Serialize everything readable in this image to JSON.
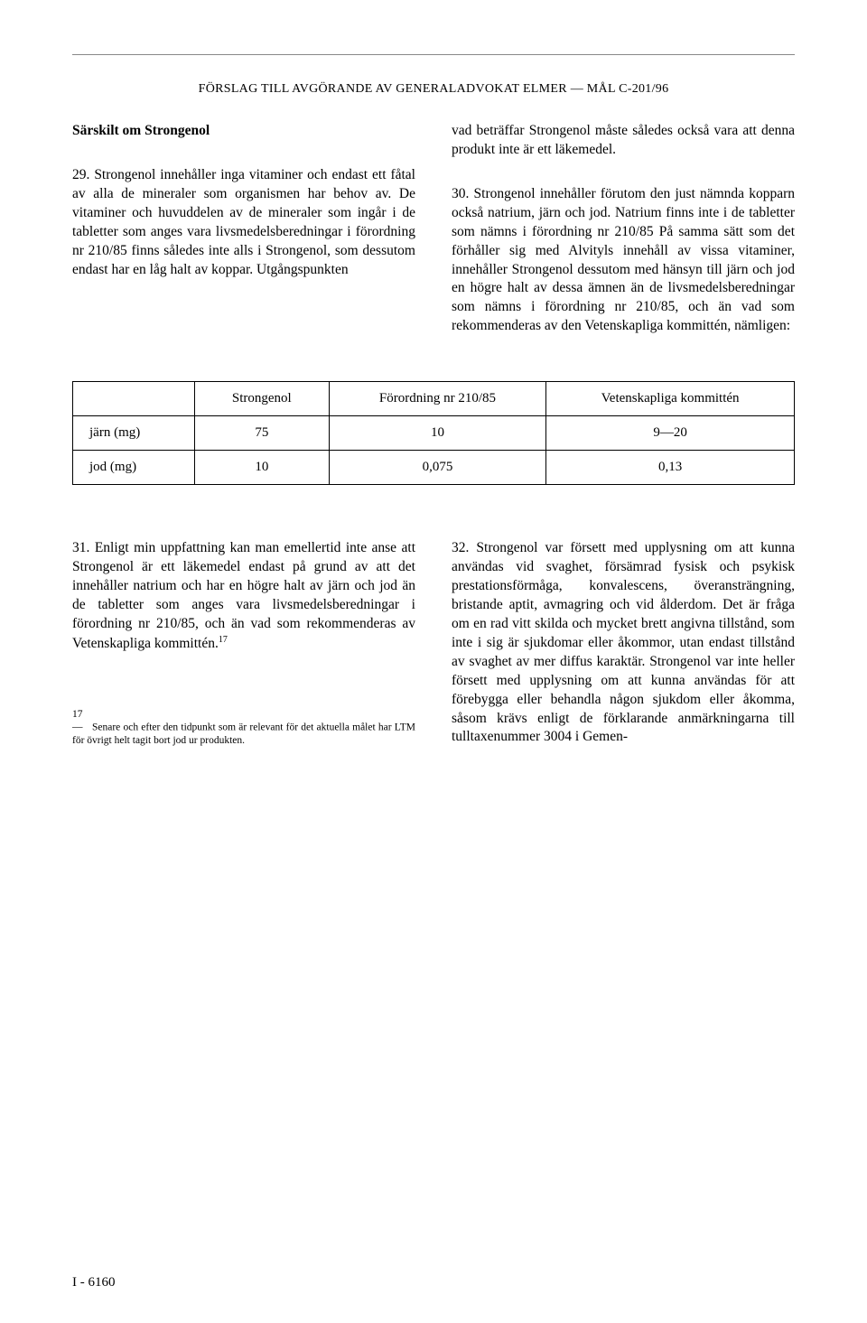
{
  "header": "FÖRSLAG TILL AVGÖRANDE AV GENERALADVOKAT ELMER — MÅL C-201/96",
  "left": {
    "subhead": "Särskilt om Strongenol",
    "para29": "29. Strongenol innehåller inga vitaminer och endast ett fåtal av alla de mineraler som organismen har behov av. De vitaminer och huvuddelen av de mineraler som ingår i de tabletter som anges vara livsmedelsberedningar i förordning nr 210/85 finns således inte alls i Strongenol, som dessutom endast har en låg halt av koppar. Utgångspunkten"
  },
  "right": {
    "paraIntro": "vad beträffar Strongenol måste således också vara att denna produkt inte är ett läkemedel.",
    "para30": "30. Strongenol innehåller förutom den just nämnda kopparn också natrium, järn och jod. Natrium finns inte i de tabletter som nämns i förordning nr 210/85 På samma sätt som det förhåller sig med Alvityls innehåll av vissa vitaminer, innehåller Strongenol dessutom med hänsyn till järn och jod en högre halt av dessa ämnen än de livsmedelsberedningar som nämns i förordning nr 210/85, och än vad som rekommenderas av den Vetenskapliga kommittén, nämligen:"
  },
  "table": {
    "columns": [
      "",
      "Strongenol",
      "Förordning nr 210/85",
      "Vetenskapliga kommittén"
    ],
    "rows": [
      [
        "järn (mg)",
        "75",
        "10",
        "9—20"
      ],
      [
        "jod (mg)",
        "10",
        "0,075",
        "0,13"
      ]
    ]
  },
  "lower_left": {
    "para31": "31. Enligt min uppfattning kan man emellertid inte anse att Strongenol är ett läkemedel endast på grund av att det innehåller natrium och har en högre halt av järn och jod än de tabletter som anges vara livsmedelsberedningar i förordning nr 210/85, och än vad som rekommenderas av Vetenskapliga kommittén.",
    "fn17_sup": "17",
    "footnote17_label": "17 —",
    "footnote17_text": "Senare och efter den tidpunkt som är relevant för det aktuella målet har LTM för övrigt helt tagit bort jod ur produkten."
  },
  "lower_right": {
    "para32": "32. Strongenol var försett med upplysning om att kunna användas vid svaghet, försämrad fysisk och psykisk prestationsförmåga, konvalescens, överansträngning, bristande aptit, avmagring och vid ålderdom. Det är fråga om en rad vitt skilda och mycket brett angivna tillstånd, som inte i sig är sjukdomar eller åkommor, utan endast tillstånd av svaghet av mer diffus karaktär. Strongenol var inte heller försett med upplysning om att kunna användas för att förebygga eller behandla någon sjukdom eller åkomma, såsom krävs enligt de förklarande anmärkningarna till tulltaxenummer 3004 i Gemen-"
  },
  "page_number": "I - 6160"
}
